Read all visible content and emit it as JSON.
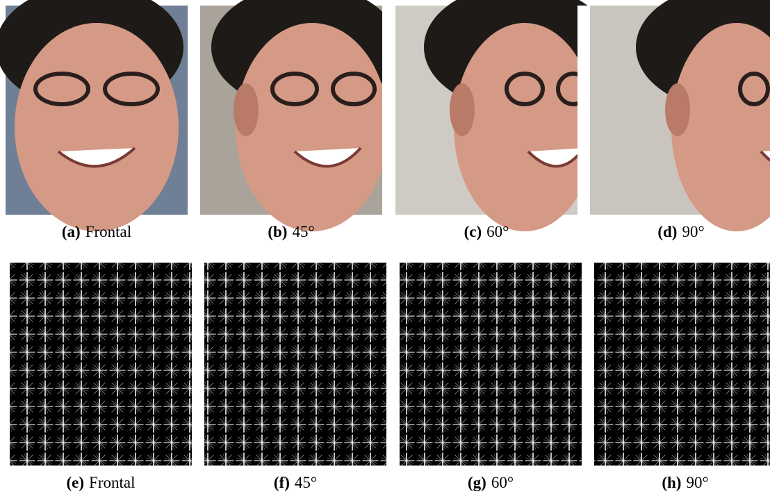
{
  "figure": {
    "panels": [
      {
        "label": "(a)",
        "caption": "Frontal"
      },
      {
        "label": "(b)",
        "caption": "45°"
      },
      {
        "label": "(c)",
        "caption": "60°"
      },
      {
        "label": "(d)",
        "caption": "90°"
      },
      {
        "label": "(e)",
        "caption": "Frontal"
      },
      {
        "label": "(f)",
        "caption": "45°"
      },
      {
        "label": "(g)",
        "caption": "60°"
      },
      {
        "label": "(h)",
        "caption": "90°"
      }
    ]
  }
}
